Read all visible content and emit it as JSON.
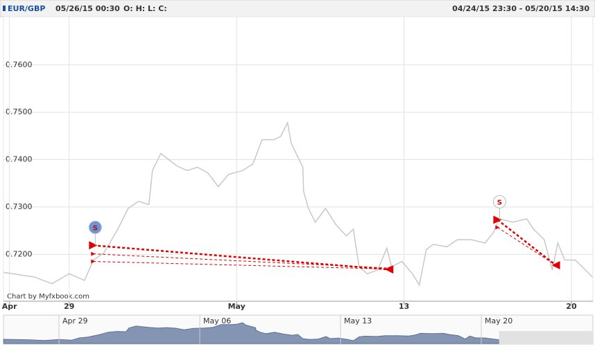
{
  "chart_data": {
    "type": "line",
    "symbol": "EUR/GBP",
    "timestamp": "05/26/15 00:30",
    "ohlc_label": "O: H: L: C:",
    "range_label": "04/24/15 23:30 - 05/20/15 14:30",
    "credit": "Chart by Myfxbook.com",
    "xlim": [
      26.25,
      50.9
    ],
    "xticks": [
      {
        "value": 26.5,
        "label": "Apr"
      },
      {
        "value": 29,
        "label": "29"
      },
      {
        "value": 36,
        "label": "May"
      },
      {
        "value": 43,
        "label": "13"
      },
      {
        "value": 50,
        "label": "20"
      }
    ],
    "ylim": [
      0.7101,
      0.7702
    ],
    "yticks": [
      {
        "value": 0.72,
        "label": "0.7200"
      },
      {
        "value": 0.73,
        "label": "0.7300"
      },
      {
        "value": 0.74,
        "label": "0.7400"
      },
      {
        "value": 0.75,
        "label": "0.7500"
      },
      {
        "value": 0.76,
        "label": "0.7600"
      }
    ],
    "grid": true,
    "series": [
      {
        "name": "EUR/GBP",
        "color": "#c8c8c8",
        "x": [
          26.25,
          27.55,
          28.28,
          29,
          29.64,
          30.01,
          30.45,
          31.03,
          31.46,
          31.9,
          32.33,
          32.48,
          32.83,
          33.49,
          33.93,
          34.36,
          34.8,
          35.23,
          35.67,
          36.25,
          36.68,
          37.06,
          37.55,
          37.84,
          38.13,
          38.28,
          38.77,
          38.8,
          39,
          39.29,
          39.72,
          40.16,
          40.59,
          40.88,
          41.12,
          41.46,
          41.9,
          42.28,
          42.48,
          42.91,
          43.35,
          43.64,
          43.93,
          44.22,
          44.8,
          45.23,
          45.81,
          46.39,
          46.74,
          46.97,
          47.55,
          48.13,
          48.42,
          48.86,
          49.2,
          49.43,
          49.72,
          50.16,
          50.59,
          50.88
        ],
        "values": [
          0.7162,
          0.7152,
          0.7138,
          0.7159,
          0.7145,
          0.7188,
          0.7203,
          0.7253,
          0.7297,
          0.7312,
          0.7305,
          0.7377,
          0.7413,
          0.7387,
          0.7377,
          0.7384,
          0.7372,
          0.7343,
          0.7369,
          0.7377,
          0.7391,
          0.7442,
          0.7442,
          0.7449,
          0.7478,
          0.7435,
          0.7384,
          0.7333,
          0.7297,
          0.7268,
          0.7297,
          0.7262,
          0.7239,
          0.7253,
          0.7174,
          0.7159,
          0.7167,
          0.7213,
          0.7174,
          0.7185,
          0.7159,
          0.7135,
          0.721,
          0.7221,
          0.7216,
          0.7231,
          0.7231,
          0.7224,
          0.7246,
          0.7275,
          0.7268,
          0.7275,
          0.7253,
          0.7231,
          0.7167,
          0.7224,
          0.7188,
          0.7188,
          0.7167,
          0.7152
        ]
      }
    ],
    "trade_color": "#e00000",
    "trade_groups": [
      {
        "label": "S",
        "trades": [
          {
            "open_x": 30.0,
            "open": 0.7219,
            "close_x": 42.38,
            "close": 0.7168
          },
          {
            "open_x": 30.0,
            "open": 0.7201,
            "close_x": 42.38,
            "close": 0.7171
          },
          {
            "open_x": 30.0,
            "open": 0.7185,
            "close_x": 42.38,
            "close": 0.7169
          }
        ]
      },
      {
        "label": "S",
        "trades": [
          {
            "open_x": 46.91,
            "open": 0.7273,
            "close_x": 49.35,
            "close": 0.7177
          },
          {
            "open_x": 46.91,
            "open": 0.7257,
            "close_x": 49.35,
            "close": 0.7177
          }
        ]
      }
    ],
    "navigator": {
      "xlim": [
        26.24,
        55.55
      ],
      "xticks": [
        {
          "value": 29,
          "label": "Apr 29"
        },
        {
          "value": 36,
          "label": "May 06"
        },
        {
          "value": 43,
          "label": "May 13"
        },
        {
          "value": 50,
          "label": "May 20"
        }
      ]
    }
  }
}
